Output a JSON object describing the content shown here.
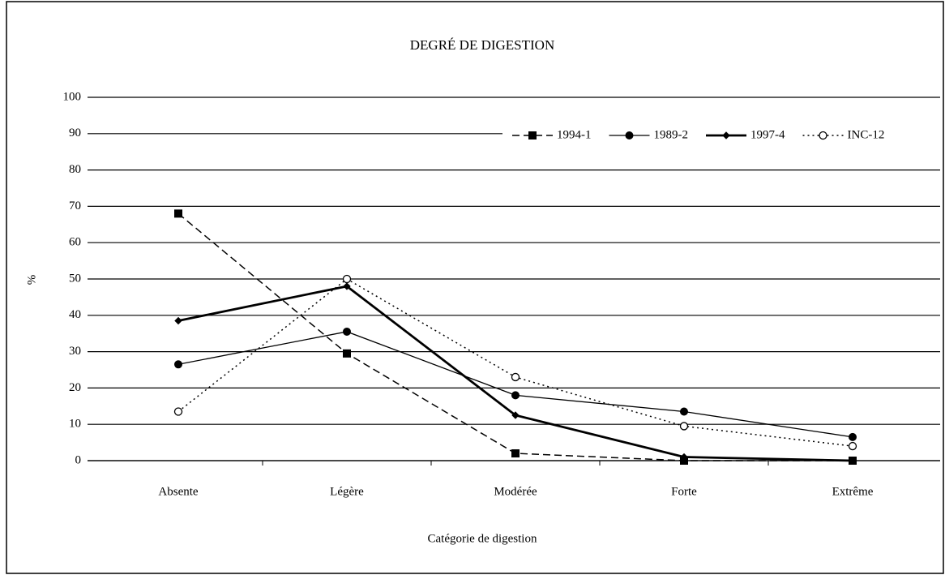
{
  "chart_data": {
    "type": "line",
    "title": "DEGRÉ DE DIGESTION",
    "x_label": "Catégorie de digestion",
    "y_label": "%",
    "categories": [
      "Absente",
      "Légère",
      "Modérée",
      "Forte",
      "Extrême"
    ],
    "series": [
      {
        "name": "1994-1",
        "color": "#000000",
        "line_style": "dashed",
        "marker": "square",
        "values": [
          68,
          29.5,
          2,
          0,
          0
        ]
      },
      {
        "name": "1989-2",
        "color": "#000000",
        "line_style": "solid",
        "marker": "circle",
        "values": [
          26.5,
          35.5,
          18,
          13.5,
          6.5
        ]
      },
      {
        "name": "1997-4",
        "color": "#000000",
        "line_style": "bold",
        "marker": "diamond",
        "values": [
          38.5,
          48,
          12.5,
          1,
          0
        ]
      },
      {
        "name": "INC-12",
        "color": "#000000",
        "line_style": "dotted",
        "marker": "open-circle",
        "values": [
          13.5,
          50,
          23,
          9.5,
          4
        ]
      }
    ],
    "ylim": [
      0,
      100
    ],
    "yticks": [
      0,
      10,
      20,
      30,
      40,
      50,
      60,
      70,
      80,
      90,
      100
    ],
    "grid": true,
    "legend": "top-right"
  }
}
